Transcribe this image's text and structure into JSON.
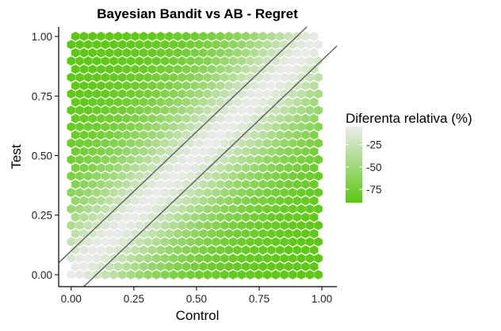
{
  "chart_data": {
    "type": "heatmap",
    "subtype": "hexbin",
    "title": "Bayesian Bandit vs AB - Regret",
    "xlabel": "Control",
    "ylabel": "Test",
    "xlim": [
      -0.05,
      1.06
    ],
    "ylim": [
      -0.05,
      1.04
    ],
    "x_ticks": [
      0.0,
      0.25,
      0.5,
      0.75,
      1.0
    ],
    "x_tick_labels": [
      "0.00",
      "0.25",
      "0.50",
      "0.75",
      "1.00"
    ],
    "y_ticks": [
      0.0,
      0.25,
      0.5,
      0.75,
      1.0
    ],
    "y_tick_labels": [
      "0.00",
      "0.25",
      "0.50",
      "0.75",
      "1.00"
    ],
    "grid": false,
    "legend": {
      "title": "Diferenta relativa (%)",
      "placement": "right",
      "color_low": "#5cc712",
      "color_high": "#ebebeb",
      "value_min": -90,
      "value_max": -5,
      "ticks": [
        -25,
        -50,
        -75
      ],
      "tick_labels": [
        "-25",
        "-50",
        "-75"
      ]
    },
    "hex_field": {
      "x_range": [
        0.0,
        1.0
      ],
      "y_range": [
        0.0,
        1.0
      ],
      "value_on_diagonal": -5,
      "value_far_from_diagonal": -90,
      "fill_model": "value decreases with |Test - Control|"
    },
    "reference_lines": [
      {
        "slope": 1,
        "intercept": 0.1
      },
      {
        "slope": 1,
        "intercept": -0.1
      }
    ],
    "reference_line_color": "#555555"
  }
}
